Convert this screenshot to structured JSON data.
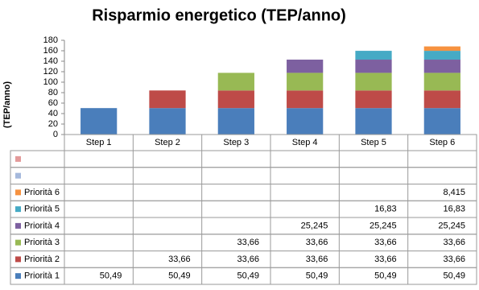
{
  "chart_data": {
    "type": "stacked-bar",
    "title": "Risparmio energetico (TEP/anno)",
    "y_label": "(TEP/anno)",
    "categories": [
      "Step 1",
      "Step 2",
      "Step 3",
      "Step 4",
      "Step 5",
      "Step 6"
    ],
    "ylim": [
      0,
      180
    ],
    "yticks": [
      0,
      20,
      40,
      60,
      80,
      100,
      120,
      140,
      160,
      180
    ],
    "grid": false,
    "data_table": true,
    "series": [
      {
        "name": "Priorità 1",
        "color": "#4a7ebb",
        "values": [
          50.49,
          50.49,
          50.49,
          50.49,
          50.49,
          50.49
        ],
        "value_labels": [
          "50,49",
          "50,49",
          "50,49",
          "50,49",
          "50,49",
          "50,49"
        ]
      },
      {
        "name": "Priorità 2",
        "color": "#be4b48",
        "values": [
          null,
          33.66,
          33.66,
          33.66,
          33.66,
          33.66
        ],
        "value_labels": [
          null,
          "33,66",
          "33,66",
          "33,66",
          "33,66",
          "33,66"
        ]
      },
      {
        "name": "Priorità 3",
        "color": "#98b954",
        "values": [
          null,
          null,
          33.66,
          33.66,
          33.66,
          33.66
        ],
        "value_labels": [
          null,
          null,
          "33,66",
          "33,66",
          "33,66",
          "33,66"
        ]
      },
      {
        "name": "Priorità 4",
        "color": "#7d60a0",
        "values": [
          null,
          null,
          null,
          25.245,
          25.245,
          25.245
        ],
        "value_labels": [
          null,
          null,
          null,
          "25,245",
          "25,245",
          "25,245"
        ]
      },
      {
        "name": "Priorità 5",
        "color": "#46aac5",
        "values": [
          null,
          null,
          null,
          null,
          16.83,
          16.83
        ],
        "value_labels": [
          null,
          null,
          null,
          null,
          "16,83",
          "16,83"
        ]
      },
      {
        "name": "Priorità 6",
        "color": "#f69240",
        "values": [
          null,
          null,
          null,
          null,
          null,
          8.415
        ],
        "value_labels": [
          null,
          null,
          null,
          null,
          null,
          "8,415"
        ]
      },
      {
        "name": null,
        "color": "#a5b9dc",
        "values": [
          null,
          null,
          null,
          null,
          null,
          null
        ]
      },
      {
        "name": null,
        "color": "#e39a9a",
        "values": [
          null,
          null,
          null,
          null,
          null,
          null
        ]
      }
    ]
  }
}
